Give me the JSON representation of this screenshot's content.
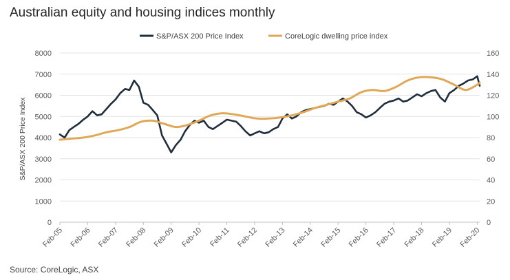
{
  "title": "Australian equity and housing indices monthly",
  "source": "Source: CoreLogic, ASX",
  "chart_data": {
    "type": "line",
    "title": "Australian equity and housing indices monthly",
    "ylabel": "S&P/ASX 200 Price Index",
    "y2label": "",
    "ylim": [
      0,
      8000
    ],
    "y2lim": [
      0,
      160
    ],
    "yticks": [
      0,
      1000,
      2000,
      3000,
      4000,
      5000,
      6000,
      7000,
      8000
    ],
    "y2ticks": [
      0,
      20,
      40,
      60,
      80,
      100,
      120,
      140,
      160
    ],
    "xticks": [
      "Feb-05",
      "Feb-06",
      "Feb-07",
      "Feb-08",
      "Feb-09",
      "Feb-10",
      "Feb-11",
      "Feb-12",
      "Feb-13",
      "Feb-14",
      "Feb-15",
      "Feb-16",
      "Feb-17",
      "Feb-18",
      "Feb-19",
      "Feb-20"
    ],
    "grid": true,
    "legend_position": "top",
    "series": [
      {
        "name": "S&P/ASX 200 Price Index",
        "axis": "left",
        "color": "#1f2d3d",
        "x": [
          2005.08,
          2005.25,
          2005.42,
          2005.58,
          2005.75,
          2005.92,
          2006.08,
          2006.25,
          2006.42,
          2006.58,
          2006.75,
          2006.92,
          2007.08,
          2007.25,
          2007.42,
          2007.58,
          2007.75,
          2007.92,
          2008.08,
          2008.25,
          2008.42,
          2008.58,
          2008.75,
          2008.92,
          2009.08,
          2009.25,
          2009.42,
          2009.58,
          2009.75,
          2009.92,
          2010.08,
          2010.25,
          2010.42,
          2010.58,
          2010.75,
          2010.92,
          2011.08,
          2011.25,
          2011.42,
          2011.58,
          2011.75,
          2011.92,
          2012.08,
          2012.25,
          2012.42,
          2012.58,
          2012.75,
          2012.92,
          2013.08,
          2013.25,
          2013.42,
          2013.58,
          2013.75,
          2013.92,
          2014.08,
          2014.25,
          2014.42,
          2014.58,
          2014.75,
          2014.92,
          2015.08,
          2015.25,
          2015.42,
          2015.58,
          2015.75,
          2015.92,
          2016.08,
          2016.25,
          2016.42,
          2016.58,
          2016.75,
          2016.92,
          2017.08,
          2017.25,
          2017.42,
          2017.58,
          2017.75,
          2017.92,
          2018.08,
          2018.25,
          2018.42,
          2018.58,
          2018.75,
          2018.92,
          2019.08,
          2019.25,
          2019.42,
          2019.58,
          2019.75,
          2019.92,
          2020.08,
          2020.17
        ],
        "values": [
          4150,
          4000,
          4350,
          4500,
          4650,
          4850,
          5000,
          5250,
          5050,
          5100,
          5350,
          5600,
          5800,
          6100,
          6300,
          6250,
          6700,
          6400,
          5650,
          5550,
          5300,
          5050,
          4100,
          3700,
          3300,
          3650,
          3900,
          4300,
          4600,
          4800,
          4700,
          4800,
          4500,
          4400,
          4550,
          4700,
          4850,
          4800,
          4750,
          4550,
          4300,
          4100,
          4200,
          4300,
          4200,
          4250,
          4400,
          4500,
          4900,
          5100,
          4900,
          5000,
          5200,
          5300,
          5350,
          5400,
          5450,
          5500,
          5600,
          5550,
          5700,
          5850,
          5700,
          5500,
          5200,
          5100,
          4950,
          5050,
          5200,
          5400,
          5600,
          5700,
          5750,
          5850,
          5700,
          5750,
          5900,
          6050,
          5950,
          6100,
          6200,
          6250,
          5900,
          5700,
          6100,
          6250,
          6450,
          6550,
          6700,
          6750,
          6900,
          6450
        ]
      },
      {
        "name": "CoreLogic dwelling price index",
        "axis": "right",
        "color": "#e0a757",
        "x": [
          2005.08,
          2005.5,
          2005.92,
          2006.33,
          2006.75,
          2007.17,
          2007.58,
          2008.0,
          2008.42,
          2008.83,
          2009.25,
          2009.67,
          2010.08,
          2010.5,
          2010.92,
          2011.33,
          2011.75,
          2012.17,
          2012.58,
          2013.0,
          2013.42,
          2013.83,
          2014.25,
          2014.67,
          2015.08,
          2015.5,
          2015.92,
          2016.33,
          2016.75,
          2017.17,
          2017.58,
          2018.0,
          2018.42,
          2018.83,
          2019.25,
          2019.67,
          2020.08,
          2020.17
        ],
        "values": [
          78,
          79,
          80,
          82,
          85,
          87,
          90,
          95,
          96,
          93,
          90,
          92,
          96,
          101,
          103,
          102,
          100,
          98,
          98,
          99,
          101,
          104,
          108,
          111,
          114,
          117,
          123,
          125,
          124,
          128,
          134,
          137,
          137,
          135,
          130,
          125,
          130,
          132
        ]
      }
    ]
  }
}
